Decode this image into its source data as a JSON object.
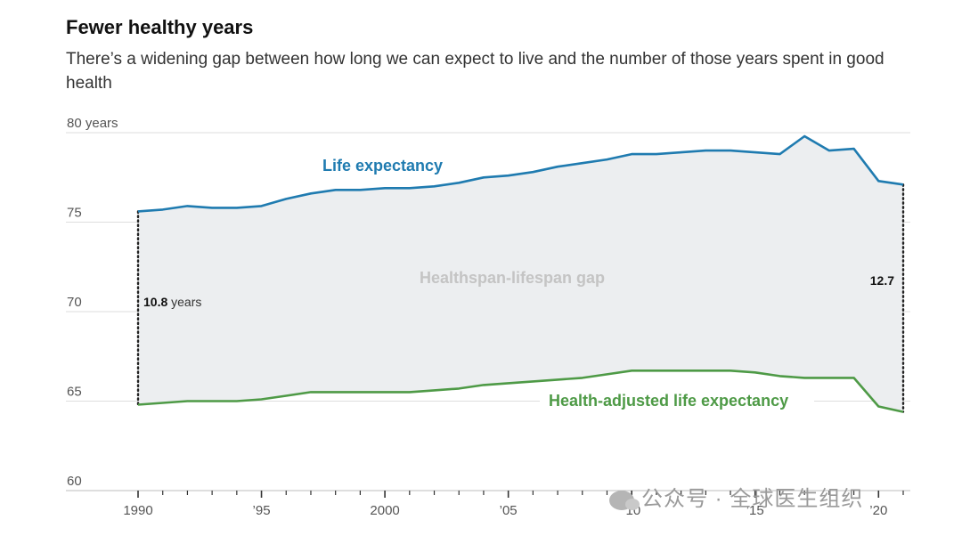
{
  "chart_data": {
    "type": "line",
    "title": "Fewer healthy years",
    "subtitle": "There’s a widening gap between how long we can expect to live and the number of those years spent in good health",
    "x": [
      1990,
      1991,
      1992,
      1993,
      1994,
      1995,
      1996,
      1997,
      1998,
      1999,
      2000,
      2001,
      2002,
      2003,
      2004,
      2005,
      2006,
      2007,
      2008,
      2009,
      2010,
      2011,
      2012,
      2013,
      2014,
      2015,
      2016,
      2017,
      2018,
      2019,
      2020,
      2021
    ],
    "series": [
      {
        "name": "Life expectancy",
        "label": "Life expectancy",
        "color": "#1f7bb0",
        "values": [
          75.6,
          75.7,
          75.9,
          75.8,
          75.8,
          75.9,
          76.3,
          76.6,
          76.8,
          76.8,
          76.9,
          76.9,
          77.0,
          77.2,
          77.5,
          77.6,
          77.8,
          78.1,
          78.3,
          78.5,
          78.8,
          78.8,
          78.9,
          79.0,
          79.0,
          78.9,
          78.8,
          79.8,
          79.0,
          79.1,
          77.3,
          77.1
        ]
      },
      {
        "name": "Health-adjusted life expectancy",
        "label": "Health-adjusted life expectancy",
        "color": "#4e9a46",
        "values": [
          64.8,
          64.9,
          65.0,
          65.0,
          65.0,
          65.1,
          65.3,
          65.5,
          65.5,
          65.5,
          65.5,
          65.5,
          65.6,
          65.7,
          65.9,
          66.0,
          66.1,
          66.2,
          66.3,
          66.5,
          66.7,
          66.7,
          66.7,
          66.7,
          66.7,
          66.6,
          66.4,
          66.3,
          66.3,
          66.3,
          64.7,
          64.4
        ]
      }
    ],
    "gap_label": "Healthspan-lifespan gap",
    "ylim": [
      60,
      80
    ],
    "y_ticks": [
      {
        "value": 80,
        "label": "80 years"
      },
      {
        "value": 75,
        "label": "75"
      },
      {
        "value": 70,
        "label": "70"
      },
      {
        "value": 65,
        "label": "65"
      },
      {
        "value": 60,
        "label": "60"
      }
    ],
    "x_ticks": [
      {
        "value": 1990,
        "label": "1990"
      },
      {
        "value": 1995,
        "label": "’95"
      },
      {
        "value": 2000,
        "label": "2000"
      },
      {
        "value": 2005,
        "label": "’05"
      },
      {
        "value": 2010,
        "label": "’10"
      },
      {
        "value": 2015,
        "label": "’15"
      },
      {
        "value": 2020,
        "label": "’20"
      }
    ],
    "annotations": {
      "start_gap_value": "10.8",
      "start_gap_unit": " years",
      "end_gap_value": "12.7"
    },
    "grid": true
  },
  "watermark": "公众号 · 全球医生组织"
}
